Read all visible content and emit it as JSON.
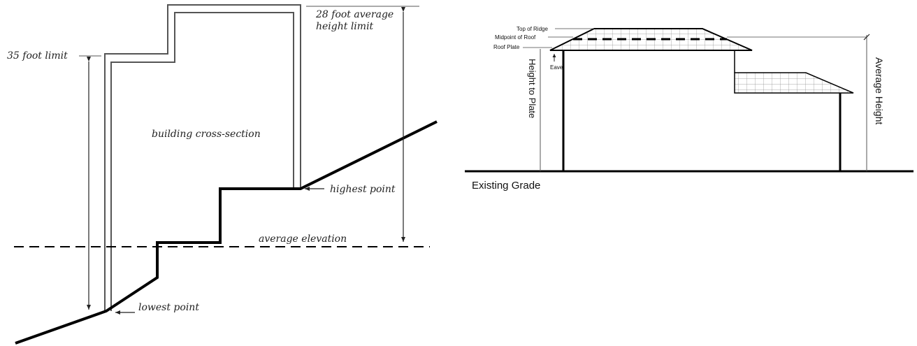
{
  "left_diagram": {
    "label_35_limit": "35 foot limit",
    "label_28_line1": "28 foot average",
    "label_28_line2": "height limit",
    "label_cross_section": "building cross-section",
    "label_highest": "highest point",
    "label_average": "average elevation",
    "label_lowest": "lowest point"
  },
  "right_diagram": {
    "label_top_of_ridge": "Top of Ridge",
    "label_midpoint": "Midpoint of Roof",
    "label_roof_plate": "Roof Plate",
    "label_eave": "Eave",
    "label_height_to_plate": "Height to Plate",
    "label_average_height": "Average Height",
    "label_existing_grade": "Existing Grade"
  }
}
